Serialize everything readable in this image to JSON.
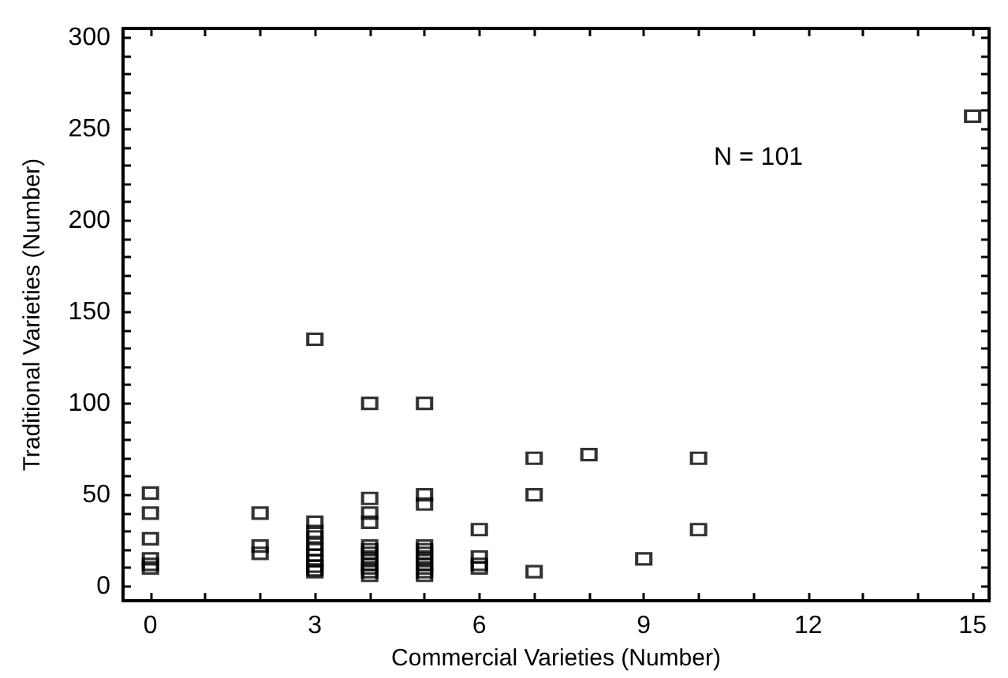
{
  "chart_data": {
    "type": "scatter",
    "xlabel": "Commercial Varieties (Number)",
    "ylabel": "Traditional Varieties (Number)",
    "annotations": [
      "N = 101"
    ],
    "x": [
      0,
      0,
      0,
      0,
      0,
      0,
      2,
      2,
      2,
      3,
      3,
      3,
      3,
      3,
      3,
      3,
      3,
      3,
      3,
      3,
      4,
      4,
      4,
      4,
      4,
      4,
      4,
      4,
      4,
      4,
      4,
      4,
      5,
      5,
      5,
      5,
      5,
      5,
      5,
      5,
      5,
      5,
      5,
      6,
      6,
      6,
      6,
      7,
      7,
      7,
      8,
      9,
      10,
      10,
      15
    ],
    "series": [
      {
        "color": "#000000",
        "values": [
          51,
          40,
          26,
          15,
          12,
          10,
          40,
          22,
          18,
          135,
          35,
          30,
          27,
          23,
          20,
          17,
          14,
          11,
          9,
          8,
          100,
          48,
          40,
          35,
          22,
          20,
          18,
          15,
          12,
          10,
          8,
          6,
          100,
          50,
          45,
          22,
          20,
          18,
          15,
          12,
          10,
          8,
          6,
          31,
          16,
          12,
          10,
          70,
          50,
          8,
          72,
          15,
          70,
          31,
          257
        ]
      }
    ],
    "xlim": [
      -0.5,
      15.3
    ],
    "ylim": [
      -8,
      305
    ],
    "xticks": [
      0,
      {
        "value": 1,
        "label": null
      },
      {
        "value": 2,
        "label": null
      },
      3,
      {
        "value": 4,
        "label": null
      },
      {
        "value": 5,
        "label": null
      },
      6,
      {
        "value": 7,
        "label": null
      },
      {
        "value": 8,
        "label": null
      },
      9,
      {
        "value": 10,
        "label": null
      },
      {
        "value": 11,
        "label": null
      },
      12,
      {
        "value": 13,
        "label": null
      },
      {
        "value": 14,
        "label": null
      },
      15
    ],
    "yticks": [
      0,
      {
        "value": 10,
        "label": null
      },
      {
        "value": 20,
        "label": null
      },
      {
        "value": 30,
        "label": null
      },
      {
        "value": 40,
        "label": null
      },
      50,
      {
        "value": 60,
        "label": null
      },
      {
        "value": 70,
        "label": null
      },
      {
        "value": 80,
        "label": null
      },
      {
        "value": 90,
        "label": null
      },
      100,
      {
        "value": 110,
        "label": null
      },
      {
        "value": 120,
        "label": null
      },
      {
        "value": 130,
        "label": null
      },
      {
        "value": 140,
        "label": null
      },
      150,
      {
        "value": 160,
        "label": null
      },
      {
        "value": 170,
        "label": null
      },
      {
        "value": 180,
        "label": null
      },
      {
        "value": 190,
        "label": null
      },
      200,
      {
        "value": 210,
        "label": null
      },
      {
        "value": 220,
        "label": null
      },
      {
        "value": 230,
        "label": null
      },
      {
        "value": 240,
        "label": null
      },
      250,
      {
        "value": 260,
        "label": null
      },
      {
        "value": 270,
        "label": null
      },
      {
        "value": 280,
        "label": null
      },
      {
        "value": 290,
        "label": null
      },
      300
    ],
    "grid": false,
    "marker": "square"
  }
}
